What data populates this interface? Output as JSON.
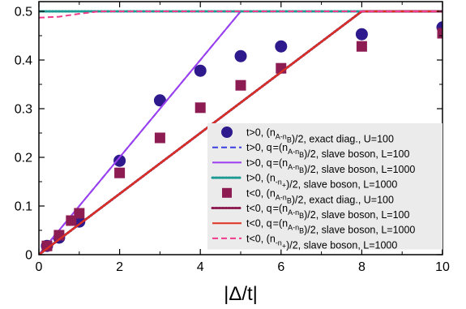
{
  "chart_data": {
    "type": "line",
    "xlabel": "|Δ/t|",
    "ylabel": "",
    "xlim": [
      0,
      10
    ],
    "ylim": [
      0,
      0.52
    ],
    "x_ticks": [
      "0",
      "2",
      "4",
      "6",
      "8",
      "10"
    ],
    "y_ticks": [
      "0",
      "0.1",
      "0.2",
      "0.3",
      "0.4",
      "0.5"
    ],
    "x_tick_values": [
      0,
      2,
      4,
      6,
      8,
      10
    ],
    "y_tick_values": [
      0,
      0.1,
      0.2,
      0.3,
      0.4,
      0.5
    ],
    "grid": false,
    "legend_placement": "bottom-right",
    "legend_background": "#ebebeb",
    "series": [
      {
        "name": "t>0, (n_A-n_B)/2, exact diag., U=100",
        "kind": "circle",
        "color": "#2e1a8c",
        "x": [
          0.2,
          0.5,
          1.0,
          2.0,
          3.0,
          4.0,
          5.0,
          6.0,
          8.0,
          10.0
        ],
        "y": [
          0.018,
          0.035,
          0.068,
          0.193,
          0.317,
          0.378,
          0.408,
          0.428,
          0.453,
          0.467
        ]
      },
      {
        "name": "t>0, q_=(n_A-n_B)/2, slave boson, L=100",
        "kind": "dashed",
        "color": "#3b3fe0",
        "x": [
          0,
          5,
          10
        ],
        "y": [
          0,
          0.5,
          0.5
        ]
      },
      {
        "name": "t>0, q_=(n_A-n_B)/2, slave boson, L=1000",
        "kind": "solid",
        "color": "#9a3ef0",
        "x": [
          0,
          5,
          10
        ],
        "y": [
          0,
          0.5,
          0.5
        ]
      },
      {
        "name": "t>0, (n_-n_+)/2, slave boson, L=1000",
        "kind": "dotted",
        "color": "#1c9a93",
        "x": [
          0,
          10
        ],
        "y": [
          0.5,
          0.5
        ]
      },
      {
        "name": "t<0, (n_A-n_B)/2, exact diag., U=100",
        "kind": "square",
        "color": "#8c1c52",
        "x": [
          0.2,
          0.5,
          0.8,
          1.0,
          2.0,
          3.0,
          4.0,
          5.0,
          6.0,
          8.0,
          10.0
        ],
        "y": [
          0.018,
          0.04,
          0.07,
          0.085,
          0.168,
          0.24,
          0.302,
          0.348,
          0.383,
          0.428,
          0.455
        ]
      },
      {
        "name": "t<0, q_=(n_A-n_B)/2, slave boson, L=100",
        "kind": "dotted",
        "color": "#8c1c52",
        "x": [
          0,
          8,
          10
        ],
        "y": [
          0,
          0.5,
          0.5
        ]
      },
      {
        "name": "t<0, q_=(n_A-n_B)/2, slave boson, L=1000",
        "kind": "solid",
        "color": "#e03020",
        "x": [
          0,
          8,
          10
        ],
        "y": [
          0,
          0.5,
          0.5
        ]
      },
      {
        "name": "t<0, (n_-n_+)/2, slave boson, L=1000",
        "kind": "dashed",
        "color": "#f03a8c",
        "x": [
          0,
          0.5,
          1.0,
          1.5,
          10
        ],
        "y": [
          0.487,
          0.489,
          0.495,
          0.5,
          0.5
        ]
      }
    ]
  }
}
